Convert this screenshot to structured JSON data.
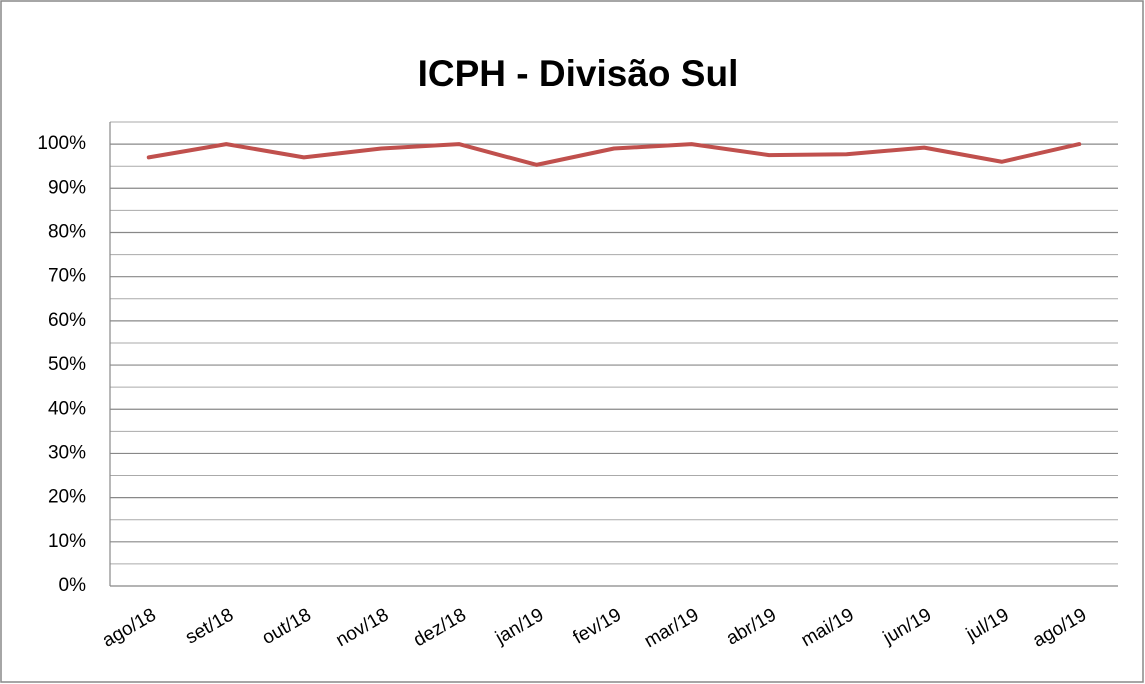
{
  "chart_data": {
    "type": "line",
    "title": "ICPH - Divisão Sul",
    "categories": [
      "ago/18",
      "set/18",
      "out/18",
      "nov/18",
      "dez/18",
      "jan/19",
      "fev/19",
      "mar/19",
      "abr/19",
      "mai/19",
      "jun/19",
      "jul/19",
      "ago/19"
    ],
    "series": [
      {
        "name": "ICPH",
        "color": "#c0504d",
        "values": [
          97,
          100,
          97,
          99,
          100,
          95.3,
          99,
          100,
          97.5,
          97.7,
          99.2,
          96,
          100
        ]
      }
    ],
    "ylim": [
      0,
      105
    ],
    "yticks": [
      {
        "value": 0,
        "label": "0%"
      },
      {
        "value": 10,
        "label": "10%"
      },
      {
        "value": 20,
        "label": "20%"
      },
      {
        "value": 30,
        "label": "30%"
      },
      {
        "value": 40,
        "label": "40%"
      },
      {
        "value": 50,
        "label": "50%"
      },
      {
        "value": 60,
        "label": "60%"
      },
      {
        "value": 70,
        "label": "70%"
      },
      {
        "value": 80,
        "label": "80%"
      },
      {
        "value": 90,
        "label": "90%"
      },
      {
        "value": 100,
        "label": "100%"
      }
    ],
    "minor_yticks": [
      5,
      15,
      25,
      35,
      45,
      55,
      65,
      75,
      85,
      95,
      105
    ],
    "grid": true
  }
}
